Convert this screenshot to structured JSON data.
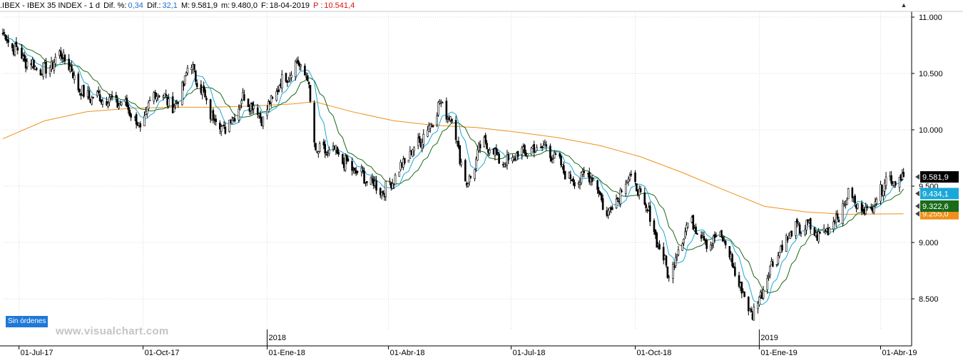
{
  "header": {
    "symbol": ".IBEX - IBEX 35 INDEX - 1 d",
    "dif_pct_label": "Dif. %:",
    "dif_pct_value": "0,34",
    "dif_label": "Dif.:",
    "dif_value": "32,1",
    "max_label": "M:",
    "max_value": "9.581,9",
    "min_label": "m:",
    "min_value": "9.480,0",
    "date_label": "F:",
    "date_value": "18-04-2019",
    "prev_label": "P :",
    "prev_value": "10.541,4"
  },
  "badges": {
    "orders": "Sin órdenes"
  },
  "watermark": "www.visualchart.com",
  "colors": {
    "candles": "#000000",
    "ma_short": "#1aa8d8",
    "ma_medium": "#1a6a1a",
    "ma_long": "#f0901a",
    "grid": "#d8d8d8"
  },
  "chart_data": {
    "type": "candlestick",
    "title": "",
    "xlabel": "",
    "ylabel": "",
    "ylim": [
      8200,
      11000
    ],
    "grid": true,
    "y_ticks": [
      8500,
      9000,
      9500,
      10000,
      10500,
      11000
    ],
    "y_tick_labels": [
      "8.500",
      "9.000",
      "9.500",
      "10.000",
      "10.500",
      "11.000"
    ],
    "x_ticks": [
      {
        "date": "2017-07-01",
        "label": "01-Jul-17"
      },
      {
        "date": "2017-10-01",
        "label": "01-Oct-17"
      },
      {
        "date": "2018-01-01",
        "label": "01-Ene-18"
      },
      {
        "date": "2018-04-01",
        "label": "01-Abr-18"
      },
      {
        "date": "2018-07-01",
        "label": "01-Jul-18"
      },
      {
        "date": "2018-10-01",
        "label": "01-Oct-18"
      },
      {
        "date": "2019-01-01",
        "label": "01-Ene-19"
      },
      {
        "date": "2019-04-01",
        "label": "01-Abr-19"
      }
    ],
    "year_markers": [
      {
        "date": "2018-01-01",
        "label": "2018"
      },
      {
        "date": "2019-01-01",
        "label": "2019"
      }
    ],
    "x_range": [
      "2017-06-19",
      "2019-04-24"
    ],
    "price_anchors": [
      [
        "2017-06-19",
        10850
      ],
      [
        "2017-07-05",
        10620
      ],
      [
        "2017-07-20",
        10520
      ],
      [
        "2017-08-02",
        10680
      ],
      [
        "2017-08-18",
        10300
      ],
      [
        "2017-09-05",
        10280
      ],
      [
        "2017-09-20",
        10200
      ],
      [
        "2017-09-29",
        10000
      ],
      [
        "2017-10-10",
        10350
      ],
      [
        "2017-10-25",
        10200
      ],
      [
        "2017-11-05",
        10600
      ],
      [
        "2017-11-20",
        10150
      ],
      [
        "2017-12-01",
        10000
      ],
      [
        "2017-12-15",
        10300
      ],
      [
        "2017-12-29",
        10100
      ],
      [
        "2018-01-10",
        10400
      ],
      [
        "2018-01-24",
        10600
      ],
      [
        "2018-01-31",
        10450
      ],
      [
        "2018-02-06",
        9800
      ],
      [
        "2018-02-20",
        9800
      ],
      [
        "2018-03-05",
        9650
      ],
      [
        "2018-03-23",
        9500
      ],
      [
        "2018-03-29",
        9450
      ],
      [
        "2018-04-15",
        9750
      ],
      [
        "2018-04-30",
        10000
      ],
      [
        "2018-05-09",
        10230
      ],
      [
        "2018-05-18",
        10100
      ],
      [
        "2018-05-29",
        9500
      ],
      [
        "2018-06-10",
        9900
      ],
      [
        "2018-06-26",
        9700
      ],
      [
        "2018-07-09",
        9800
      ],
      [
        "2018-07-27",
        9850
      ],
      [
        "2018-08-15",
        9550
      ],
      [
        "2018-08-30",
        9600
      ],
      [
        "2018-09-10",
        9250
      ],
      [
        "2018-09-27",
        9600
      ],
      [
        "2018-10-11",
        9250
      ],
      [
        "2018-10-26",
        8700
      ],
      [
        "2018-11-08",
        9150
      ],
      [
        "2018-11-15",
        9150
      ],
      [
        "2018-11-23",
        9000
      ],
      [
        "2018-12-05",
        9050
      ],
      [
        "2018-12-18",
        8600
      ],
      [
        "2018-12-27",
        8350
      ],
      [
        "2019-01-10",
        8800
      ],
      [
        "2019-01-25",
        9100
      ],
      [
        "2019-02-05",
        9150
      ],
      [
        "2019-02-15",
        9050
      ],
      [
        "2019-03-01",
        9250
      ],
      [
        "2019-03-10",
        9450
      ],
      [
        "2019-03-15",
        9300
      ],
      [
        "2019-03-25",
        9300
      ],
      [
        "2019-04-04",
        9550
      ],
      [
        "2019-04-18",
        9582
      ]
    ],
    "series": [
      {
        "name": "Precio",
        "kind": "candles",
        "last_value": 9581.9
      },
      {
        "name": "",
        "kind": "ma",
        "period": 10,
        "last_value": 9434.1,
        "label": "9.434,1"
      },
      {
        "name": "",
        "kind": "ma",
        "period": 20,
        "last_value": 9322.6,
        "label": "9.322,6"
      },
      {
        "name": "",
        "kind": "ma",
        "period": 200,
        "last_value": 9255.0,
        "label": "9.255,0"
      }
    ],
    "last_price_label": "9.581,9",
    "ma200_curve": [
      [
        "2017-06-19",
        9920
      ],
      [
        "2017-07-20",
        10080
      ],
      [
        "2017-08-20",
        10160
      ],
      [
        "2017-09-20",
        10190
      ],
      [
        "2017-10-20",
        10200
      ],
      [
        "2017-11-20",
        10200
      ],
      [
        "2017-12-20",
        10210
      ],
      [
        "2018-01-20",
        10230
      ],
      [
        "2018-02-05",
        10250
      ],
      [
        "2018-03-05",
        10160
      ],
      [
        "2018-04-05",
        10080
      ],
      [
        "2018-05-05",
        10040
      ],
      [
        "2018-06-05",
        10020
      ],
      [
        "2018-07-05",
        9980
      ],
      [
        "2018-08-05",
        9930
      ],
      [
        "2018-09-05",
        9860
      ],
      [
        "2018-10-05",
        9760
      ],
      [
        "2018-11-05",
        9620
      ],
      [
        "2018-12-05",
        9470
      ],
      [
        "2019-01-05",
        9320
      ],
      [
        "2019-02-05",
        9270
      ],
      [
        "2019-03-05",
        9250
      ],
      [
        "2019-04-18",
        9255
      ]
    ]
  }
}
